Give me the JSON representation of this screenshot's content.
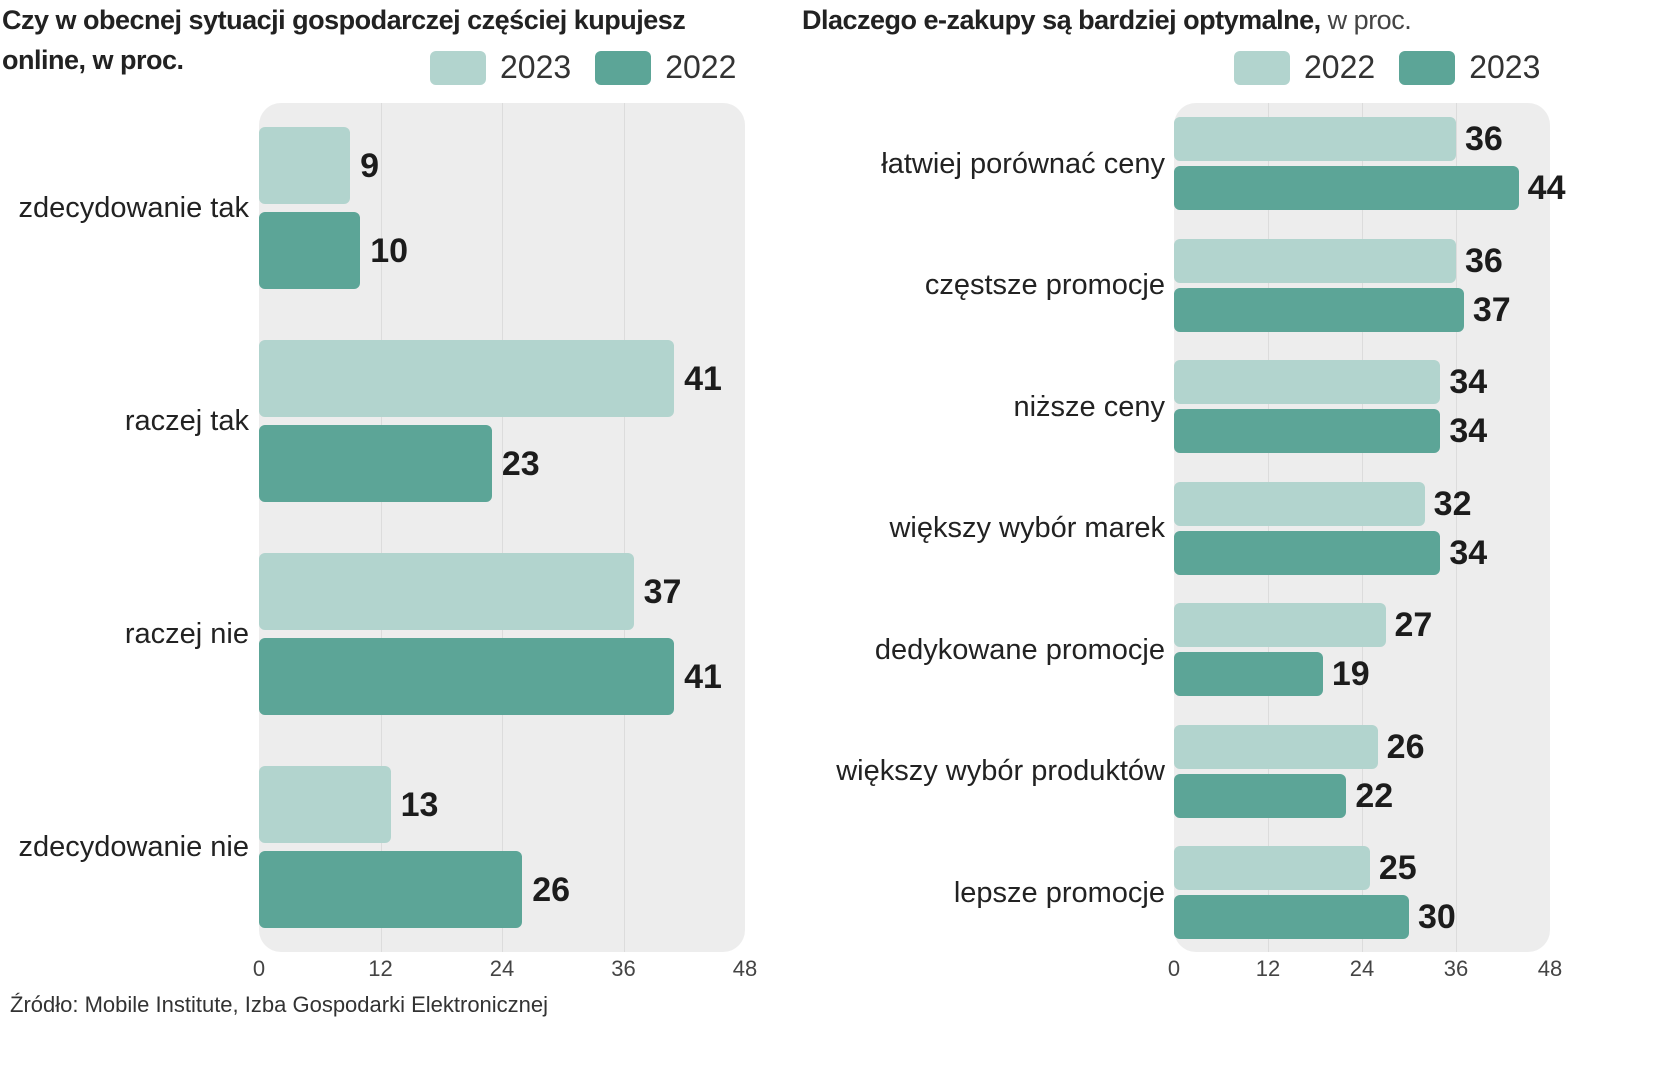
{
  "colors": {
    "light": "#b2d4ce",
    "dark": "#5ca597"
  },
  "source": "Źródło: Mobile Institute, Izba Gospodarki Elektronicznej",
  "chart_data": [
    {
      "type": "bar",
      "orientation": "horizontal",
      "title": "Czy w obecnej sytuacji gospodarczej częściej kupujesz online, w proc.",
      "title_lines": [
        "Czy w obecnej sytuacji gospodarczej częściej kupujesz",
        "online, w proc."
      ],
      "legend": [
        {
          "label": "2023",
          "color": "light"
        },
        {
          "label": "2022",
          "color": "dark"
        }
      ],
      "legend_position": "top-right",
      "categories": [
        "zdecydowanie tak",
        "raczej tak",
        "raczej nie",
        "zdecydowanie nie"
      ],
      "series": [
        {
          "name": "2023",
          "color": "light",
          "values": [
            9,
            41,
            37,
            13
          ]
        },
        {
          "name": "2022",
          "color": "dark",
          "values": [
            10,
            23,
            41,
            26
          ]
        }
      ],
      "xlim": [
        0,
        48
      ],
      "xticks": [
        "0",
        "12",
        "24",
        "36",
        "48"
      ],
      "grid": true
    },
    {
      "type": "bar",
      "orientation": "horizontal",
      "title": "Dlaczego e-zakupy są bardziej optymalne,",
      "title_suffix": " w proc.",
      "legend": [
        {
          "label": "2022",
          "color": "light"
        },
        {
          "label": "2023",
          "color": "dark"
        }
      ],
      "legend_position": "top-right",
      "categories": [
        "łatwiej porównać ceny",
        "częstsze promocje",
        "niższe ceny",
        "większy wybór marek",
        "dedykowane promocje",
        "większy wybór produktów",
        "lepsze promocje"
      ],
      "series": [
        {
          "name": "2022",
          "color": "light",
          "values": [
            36,
            36,
            34,
            32,
            27,
            26,
            25
          ]
        },
        {
          "name": "2023",
          "color": "dark",
          "values": [
            44,
            37,
            34,
            34,
            19,
            22,
            30
          ]
        }
      ],
      "xlim": [
        0,
        48
      ],
      "xticks": [
        "0",
        "12",
        "24",
        "36",
        "48"
      ],
      "grid": true
    }
  ]
}
